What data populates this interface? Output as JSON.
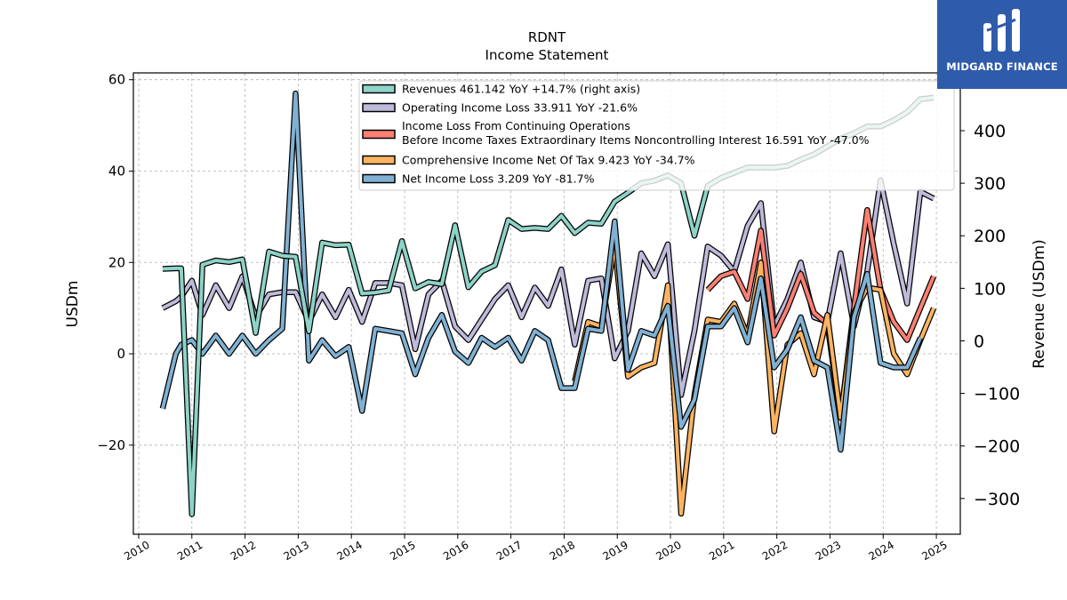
{
  "brand": {
    "name": "MIDGARD FINANCE",
    "color": "#2f5bab"
  },
  "chart_data": {
    "type": "line",
    "title": "RDNT",
    "subtitle": "Income Statement",
    "ylabel_left": "USDm",
    "ylabel_right": "Revenue (USDm)",
    "xlim": [
      2009.9,
      2025.45
    ],
    "ylim_left": [
      -39.5,
      61.5
    ],
    "ylim_right": [
      -368,
      510
    ],
    "x_ticks": [
      2010,
      2011,
      2012,
      2013,
      2014,
      2015,
      2016,
      2017,
      2018,
      2019,
      2020,
      2021,
      2022,
      2023,
      2024,
      2025
    ],
    "y_ticks_left": [
      -20,
      0,
      20,
      40,
      60
    ],
    "y_ticks_right": [
      -300,
      -200,
      -100,
      0,
      100,
      200,
      300,
      400
    ],
    "grid": true,
    "legend": {
      "placement": "top-center"
    },
    "x": [
      2010.45,
      2010.7,
      2010.8,
      2011.0,
      2011.2,
      2011.45,
      2011.7,
      2011.95,
      2012.2,
      2012.45,
      2012.7,
      2012.95,
      2013.2,
      2013.45,
      2013.7,
      2013.95,
      2014.2,
      2014.45,
      2014.7,
      2014.95,
      2015.2,
      2015.45,
      2015.7,
      2015.95,
      2016.2,
      2016.45,
      2016.7,
      2016.95,
      2017.2,
      2017.45,
      2017.7,
      2017.95,
      2018.2,
      2018.45,
      2018.7,
      2018.95,
      2019.2,
      2019.45,
      2019.7,
      2019.95,
      2020.2,
      2020.45,
      2020.7,
      2020.95,
      2021.2,
      2021.45,
      2021.7,
      2021.95,
      2022.2,
      2022.45,
      2022.7,
      2022.95,
      2023.2,
      2023.45,
      2023.7,
      2023.95,
      2024.2,
      2024.45,
      2024.7,
      2024.95
    ],
    "series": [
      {
        "name": "Revenues",
        "legend_label": "Revenues  461.142 YoY +14.7% (right axis)",
        "axis": "right",
        "color": "#8dd3c7",
        "values": [
          137,
          138,
          138,
          -330,
          145,
          153,
          150,
          155,
          15,
          170,
          162,
          160,
          18,
          187,
          182,
          183,
          90,
          92,
          96,
          190,
          100,
          112,
          108,
          220,
          102,
          132,
          144,
          230,
          213,
          215,
          213,
          238,
          205,
          225,
          223,
          265,
          282,
          300,
          305,
          315,
          300,
          200,
          295,
          310,
          320,
          330,
          330,
          330,
          333,
          345,
          355,
          370,
          385,
          395,
          408,
          408,
          420,
          435,
          460,
          463
        ]
      },
      {
        "name": "Operating Income Loss",
        "legend_label": "Operating Income Loss  33.911 YoY -21.6%",
        "axis": "left",
        "color": "#bebada",
        "values": [
          10,
          11.5,
          12.5,
          16,
          8.5,
          15,
          10,
          17,
          8,
          13,
          13.5,
          13.5,
          7,
          13,
          8,
          14,
          7,
          15.5,
          15.5,
          15,
          1,
          13,
          16,
          6,
          3,
          7.5,
          12,
          15,
          8,
          14.5,
          10.5,
          18.5,
          2,
          16,
          16.5,
          -1,
          5,
          22,
          17,
          24,
          -9,
          5,
          23.5,
          21.5,
          18,
          28,
          33,
          6,
          12,
          20,
          8,
          7,
          22,
          6,
          18,
          38,
          24,
          11,
          35.5,
          34
        ]
      },
      {
        "name": "Income Loss From Continuing Operations Before Income Taxes Extraordinary Items Noncontrolling Interest",
        "legend_label_lines": [
          "Income Loss From Continuing Operations",
          "Before Income Taxes Extraordinary Items Noncontrolling Interest  16.591 YoY -47.0%"
        ],
        "axis": "left",
        "color": "#fb8072",
        "values": [
          null,
          null,
          null,
          null,
          null,
          null,
          null,
          null,
          null,
          null,
          null,
          null,
          null,
          null,
          null,
          null,
          null,
          null,
          null,
          null,
          null,
          null,
          null,
          null,
          null,
          null,
          null,
          null,
          null,
          null,
          null,
          null,
          null,
          null,
          null,
          null,
          null,
          null,
          null,
          null,
          null,
          null,
          14,
          17,
          18,
          12,
          27,
          4,
          10,
          17.5,
          9,
          6.5,
          -14,
          10,
          31.5,
          14,
          7,
          3,
          10,
          17
        ]
      },
      {
        "name": "Comprehensive Income Net Of Tax",
        "legend_label": "Comprehensive Income Net Of Tax  9.423 YoY -34.7%",
        "axis": "left",
        "color": "#fdb462",
        "values": [
          null,
          null,
          null,
          null,
          null,
          null,
          null,
          null,
          null,
          null,
          null,
          null,
          null,
          null,
          null,
          null,
          null,
          null,
          null,
          null,
          null,
          null,
          null,
          null,
          null,
          null,
          null,
          null,
          null,
          null,
          null,
          null,
          -6,
          7,
          6,
          24,
          -5,
          -3,
          -2,
          15,
          -35,
          -9,
          7.5,
          7,
          11,
          4,
          20,
          -17,
          2,
          4.5,
          -4.5,
          8.5,
          -14,
          9,
          14.5,
          14,
          0,
          -4.5,
          3,
          10
        ]
      },
      {
        "name": "Net Income Loss",
        "legend_label": "Net Income Loss  3.209 YoY -81.7%",
        "axis": "left",
        "color": "#80b1d3",
        "values": [
          -12,
          0,
          2,
          3,
          0,
          4,
          0,
          4,
          0,
          3,
          5.5,
          57,
          -1.5,
          3,
          -0.5,
          1.5,
          -12.5,
          5.5,
          5,
          4.5,
          -4.5,
          3.5,
          8.5,
          0.5,
          -2,
          3.5,
          1.5,
          3.5,
          -1.5,
          5,
          3,
          -7.5,
          -7.5,
          5.5,
          5,
          29,
          -3.5,
          5,
          4,
          10.5,
          -16,
          -10,
          6,
          6,
          10,
          2.5,
          16.5,
          -3,
          1,
          8,
          -1.5,
          -3,
          -21,
          8,
          17.5,
          -2,
          -3,
          -3,
          3.5,
          null
        ]
      }
    ]
  }
}
